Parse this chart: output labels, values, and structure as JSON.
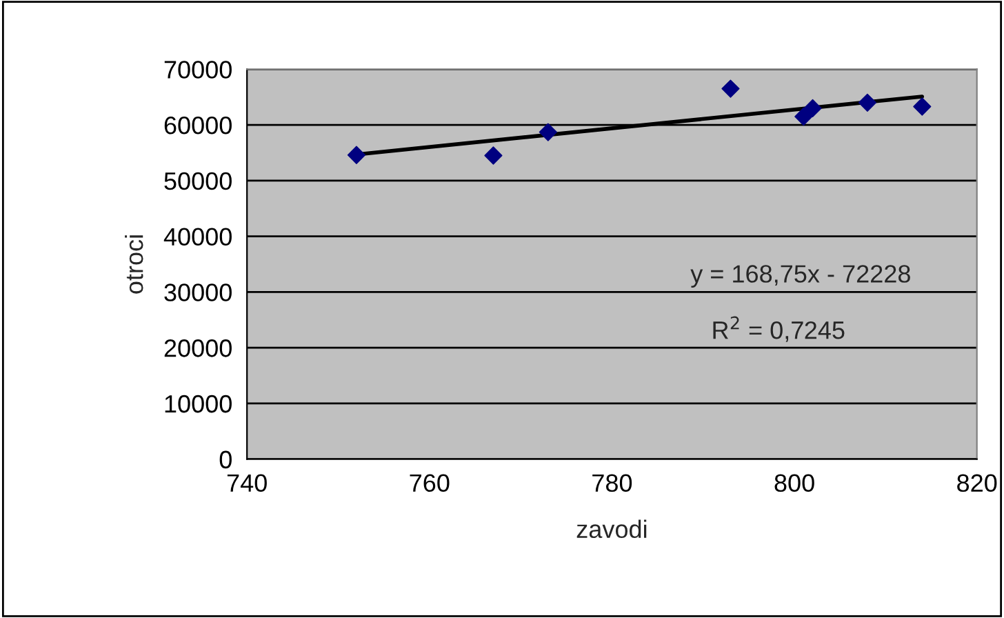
{
  "chart_data": {
    "type": "scatter",
    "xlabel": "zavodi",
    "ylabel": "otroci",
    "xlim": [
      740,
      820
    ],
    "xticks": [
      740,
      760,
      780,
      800,
      820
    ],
    "ylim": [
      0,
      70000
    ],
    "yticks": [
      0,
      10000,
      20000,
      30000,
      40000,
      50000,
      60000,
      70000
    ],
    "grid": "y",
    "legend": false,
    "series": [
      {
        "color": "#000080",
        "marker": "diamond",
        "x": [
          752,
          767,
          773,
          793,
          801,
          802,
          808,
          814
        ],
        "values": [
          54600,
          54500,
          58700,
          66500,
          61500,
          63000,
          64000,
          63300
        ]
      },
      {
        "type": "line",
        "color": "#000000",
        "marker": "none",
        "line_style": "solid",
        "x": [
          752,
          814
        ],
        "values": [
          54700,
          65100
        ]
      }
    ],
    "annotations": [
      "y = 168,75x - 72228",
      "R$^{2}$ = 0,7245"
    ]
  }
}
